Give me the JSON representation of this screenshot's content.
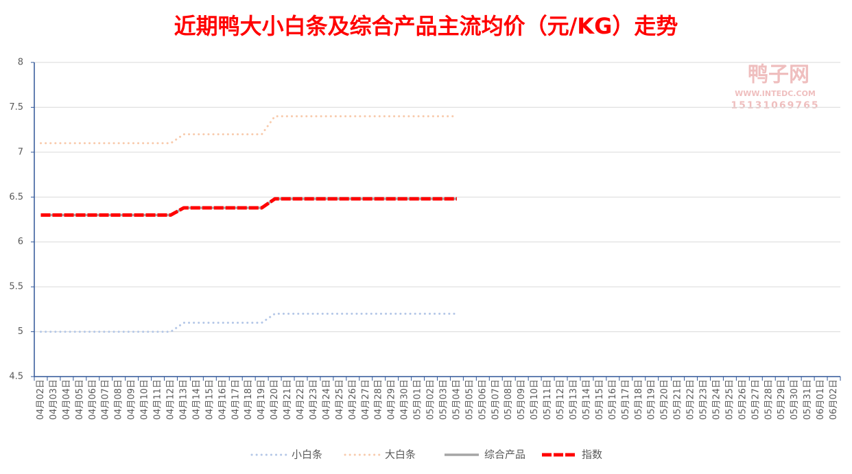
{
  "chart_data": {
    "type": "line",
    "title": "近期鸭大小白条及综合产品主流均价（元/KG）走势",
    "watermark": [
      "鸭子网",
      "WWW.INTEDC.COM",
      "15131069765"
    ],
    "categories": [
      "04月02日",
      "04月03日",
      "04月04日",
      "04月05日",
      "04月06日",
      "04月07日",
      "04月08日",
      "04月09日",
      "04月10日",
      "04月11日",
      "04月12日",
      "04月13日",
      "04月14日",
      "04月15日",
      "04月16日",
      "04月17日",
      "04月18日",
      "04月19日",
      "04月20日",
      "04月21日",
      "04月22日",
      "04月23日",
      "04月24日",
      "04月25日",
      "04月26日",
      "04月27日",
      "04月28日",
      "04月29日",
      "04月30日",
      "05月01日",
      "05月02日",
      "05月03日",
      "05月04日",
      "05月05日",
      "05月06日",
      "05月07日",
      "05月08日",
      "05月09日",
      "05月10日",
      "05月11日",
      "05月12日",
      "05月13日",
      "05月14日",
      "05月15日",
      "05月16日",
      "05月17日",
      "05月18日",
      "05月19日",
      "05月20日",
      "05月21日",
      "05月22日",
      "05月23日",
      "05月24日",
      "05月25日",
      "05月26日",
      "05月27日",
      "05月28日",
      "05月29日",
      "05月30日",
      "05月31日",
      "06月01日",
      "06月02日"
    ],
    "series": [
      {
        "name": "小白条",
        "color": "#b4c7e7",
        "style": "dotted",
        "values": [
          5,
          5,
          5,
          5,
          5,
          5,
          5,
          5,
          5,
          5,
          5,
          5.1,
          5.1,
          5.1,
          5.1,
          5.1,
          5.1,
          5.1,
          5.2,
          5.2,
          5.2,
          5.2,
          5.2,
          5.2,
          5.2,
          5.2,
          5.2,
          5.2,
          5.2,
          5.2,
          5.2,
          5.2,
          5.2,
          null,
          null,
          null,
          null,
          null,
          null,
          null,
          null,
          null,
          null,
          null,
          null,
          null,
          null,
          null,
          null,
          null,
          null,
          null,
          null,
          null,
          null,
          null,
          null,
          null,
          null,
          null,
          null,
          null
        ]
      },
      {
        "name": "大白条",
        "color": "#f8cbad",
        "style": "dotted",
        "values": [
          7.1,
          7.1,
          7.1,
          7.1,
          7.1,
          7.1,
          7.1,
          7.1,
          7.1,
          7.1,
          7.1,
          7.2,
          7.2,
          7.2,
          7.2,
          7.2,
          7.2,
          7.2,
          7.4,
          7.4,
          7.4,
          7.4,
          7.4,
          7.4,
          7.4,
          7.4,
          7.4,
          7.4,
          7.4,
          7.4,
          7.4,
          7.4,
          7.4,
          null,
          null,
          null,
          null,
          null,
          null,
          null,
          null,
          null,
          null,
          null,
          null,
          null,
          null,
          null,
          null,
          null,
          null,
          null,
          null,
          null,
          null,
          null,
          null,
          null,
          null,
          null,
          null,
          null
        ]
      },
      {
        "name": "综合产品",
        "color": "#a5a5a5",
        "style": "solid",
        "values": [
          6.3,
          6.3,
          6.3,
          6.3,
          6.3,
          6.3,
          6.3,
          6.3,
          6.3,
          6.3,
          6.3,
          6.38,
          6.38,
          6.38,
          6.38,
          6.38,
          6.38,
          6.38,
          6.48,
          6.48,
          6.48,
          6.48,
          6.48,
          6.48,
          6.48,
          6.48,
          6.48,
          6.48,
          6.48,
          6.48,
          6.48,
          6.48,
          6.48,
          null,
          null,
          null,
          null,
          null,
          null,
          null,
          null,
          null,
          null,
          null,
          null,
          null,
          null,
          null,
          null,
          null,
          null,
          null,
          null,
          null,
          null,
          null,
          null,
          null,
          null,
          null,
          null,
          null
        ]
      },
      {
        "name": "指数",
        "color": "#ff0000",
        "style": "bold",
        "values": [
          6.3,
          6.3,
          6.3,
          6.3,
          6.3,
          6.3,
          6.3,
          6.3,
          6.3,
          6.3,
          6.3,
          6.38,
          6.38,
          6.38,
          6.38,
          6.38,
          6.38,
          6.38,
          6.48,
          6.48,
          6.48,
          6.48,
          6.48,
          6.48,
          6.48,
          6.48,
          6.48,
          6.48,
          6.48,
          6.48,
          6.48,
          6.48,
          6.48,
          null,
          null,
          null,
          null,
          null,
          null,
          null,
          null,
          null,
          null,
          null,
          null,
          null,
          null,
          null,
          null,
          null,
          null,
          null,
          null,
          null,
          null,
          null,
          null,
          null,
          null,
          null,
          null,
          null
        ]
      }
    ],
    "ylim": [
      4.5,
      8
    ],
    "yticks": [
      4.5,
      5,
      5.5,
      6,
      6.5,
      7,
      7.5,
      8
    ],
    "grid": true,
    "legend": "bottom"
  }
}
